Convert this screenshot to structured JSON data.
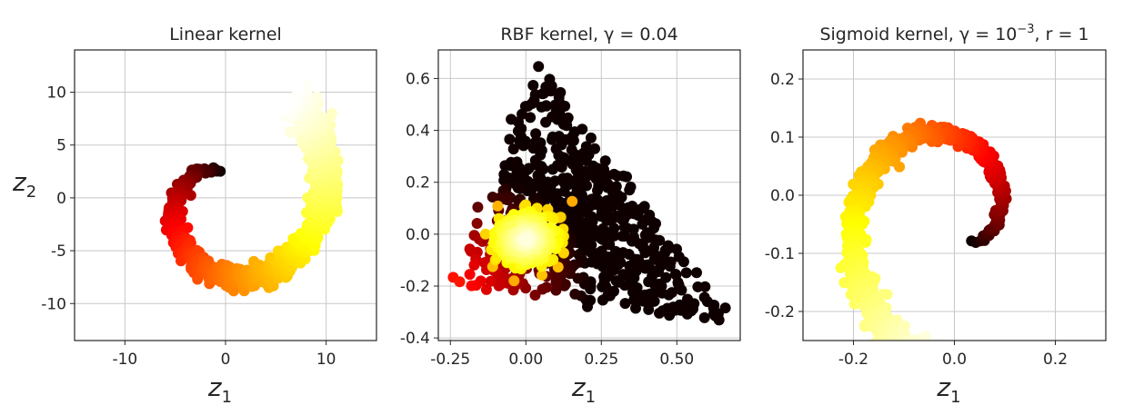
{
  "chart_data": [
    {
      "type": "scatter",
      "title": "Linear kernel",
      "xlabel": "z",
      "xlabel_sub": "1",
      "ylabel": "z",
      "ylabel_sub": "2",
      "xlim": [
        -15,
        15
      ],
      "ylim": [
        -13.5,
        14
      ],
      "xticks": [
        -10,
        0,
        10
      ],
      "xtick_labels": [
        "-10",
        "0",
        "10"
      ],
      "yticks": [
        10,
        5,
        0,
        -5,
        -10
      ],
      "ytick_labels": [
        "10",
        "5",
        "0",
        "-5",
        "-10"
      ],
      "grid": true,
      "colormap": "hot",
      "shape": "swiss-roll",
      "n_points": 1000,
      "roll_params": {
        "t_range": [
          1.5,
          7.07
        ],
        "xy_scale": 1.62,
        "angle_deg": 10,
        "radius_jitter": 0.07
      },
      "center": [
        0,
        0
      ]
    },
    {
      "type": "scatter",
      "title": "RBF kernel, γ = 0.04",
      "xlabel": "z",
      "xlabel_sub": "1",
      "ylabel": "",
      "ylabel_sub": "",
      "xlim": [
        -0.29,
        0.71
      ],
      "ylim": [
        -0.41,
        0.71
      ],
      "xticks": [
        -0.25,
        0.0,
        0.25,
        0.5
      ],
      "xtick_labels": [
        "-0.25",
        "0.00",
        "0.25",
        "0.50"
      ],
      "yticks": [
        0.6,
        0.4,
        0.2,
        0.0,
        -0.2,
        -0.4
      ],
      "ytick_labels": [
        "0.6",
        "0.4",
        "0.2",
        "0.0",
        "-0.2",
        "-0.4"
      ],
      "grid": true,
      "colormap": "hot",
      "shape": "triangle",
      "n_points": 1000,
      "triangle_vertices": [
        [
          -0.24,
          -0.2
        ],
        [
          0.05,
          0.65
        ],
        [
          0.68,
          -0.34
        ]
      ],
      "inner_cluster": {
        "center": [
          0.0,
          -0.02
        ],
        "spread": [
          0.09,
          0.09
        ]
      }
    },
    {
      "type": "scatter",
      "title": "Sigmoid kernel, γ = 10",
      "title_sup": "−3",
      "title_tail": ", r = 1",
      "xlabel": "z",
      "xlabel_sub": "1",
      "ylabel": "",
      "ylabel_sub": "",
      "xlim": [
        -0.3,
        0.3
      ],
      "ylim": [
        -0.25,
        0.25
      ],
      "xticks": [
        -0.2,
        0.0,
        0.2
      ],
      "xtick_labels": [
        "-0.2",
        "0.0",
        "0.2"
      ],
      "yticks": [
        0.2,
        0.1,
        0.0,
        -0.1,
        -0.2
      ],
      "ytick_labels": [
        "0.2",
        "0.1",
        "0.0",
        "-0.1",
        "-0.2"
      ],
      "grid": true,
      "colormap": "hot",
      "shape": "swiss-roll",
      "n_points": 1000,
      "roll_params": {
        "t_range": [
          1.5,
          7.07
        ],
        "xy_scale": 0.0355,
        "angle_deg": 220,
        "radius_jitter": 0.05
      },
      "center": [
        0.0,
        -0.04
      ]
    }
  ]
}
